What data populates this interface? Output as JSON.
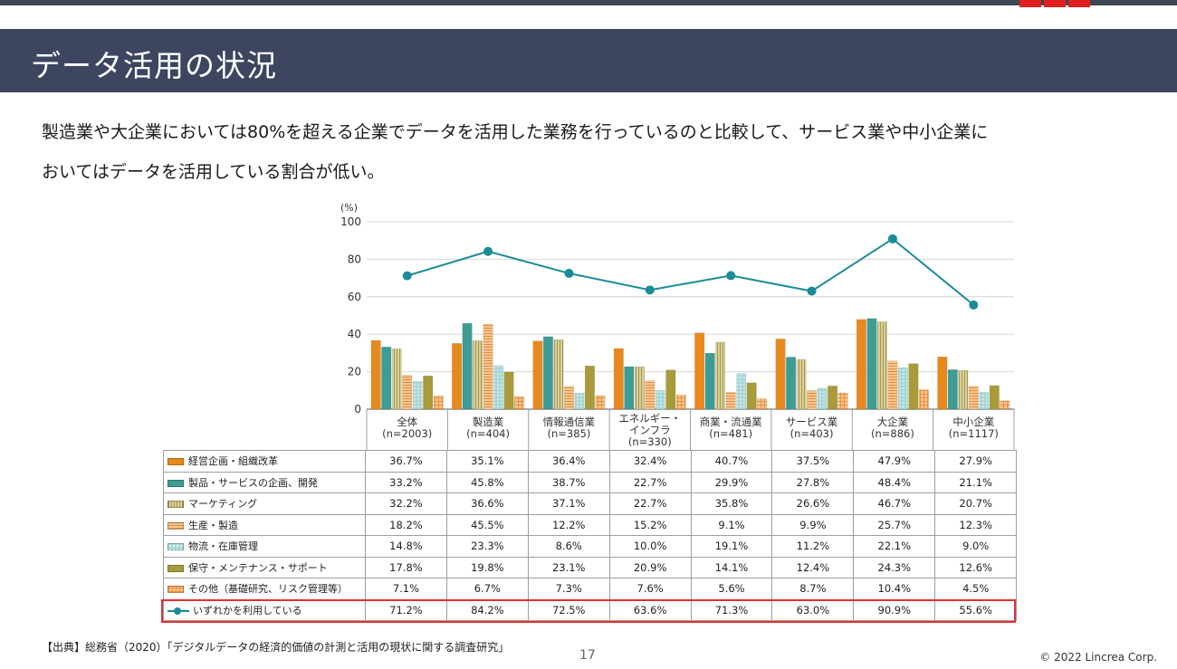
{
  "slide": {
    "title": "データ活用の状況",
    "lead_line1": "製造業や大企業においては80%を超える企業でデータを活用した業務を行っているのと比較して、サービス業や中小企業に",
    "lead_line2": "おいてはデータを活用している割合が低い。",
    "source": "【出典】総務省（2020）「デジタルデータの経済的価値の計測と活用の現状に関する調査研究」",
    "page_number": "17",
    "copyright": "© 2022 Lincrea Corp."
  },
  "chart_data": {
    "type": "bar",
    "ylabel": "(%)",
    "ylim": [
      0,
      100
    ],
    "yticks": [
      0,
      20,
      40,
      60,
      80,
      100
    ],
    "grid": true,
    "categories": [
      {
        "name": "全体",
        "n": "(n=2003)"
      },
      {
        "name": "製造業",
        "n": "(n=404)"
      },
      {
        "name": "情報通信業",
        "n": "(n=385)"
      },
      {
        "name": "エネルギー・",
        "name2": "インフラ",
        "n": "(n=330)"
      },
      {
        "name": "商業・流通業",
        "n": "(n=481)"
      },
      {
        "name": "サービス業",
        "n": "(n=403)"
      },
      {
        "name": "大企業",
        "n": "(n=886)"
      },
      {
        "name": "中小企業",
        "n": "(n=1117)"
      }
    ],
    "series": [
      {
        "name": "経営企画・組織改革",
        "color": "#e8891f",
        "pattern": "solid",
        "values": [
          36.7,
          35.1,
          36.4,
          32.4,
          40.7,
          37.5,
          47.9,
          27.9
        ]
      },
      {
        "name": "製品・サービスの企画、開発",
        "color": "#3d9c93",
        "pattern": "solid",
        "values": [
          33.2,
          45.8,
          38.7,
          22.7,
          29.9,
          27.8,
          48.4,
          21.1
        ]
      },
      {
        "name": "マーケティング",
        "color": "#c9bf7e",
        "pattern": "vlines",
        "values": [
          32.2,
          36.6,
          37.1,
          22.7,
          35.8,
          26.6,
          46.7,
          20.7
        ]
      },
      {
        "name": "生産・製造",
        "color": "#f2a86a",
        "pattern": "hlines",
        "values": [
          18.2,
          45.5,
          12.2,
          15.2,
          9.1,
          9.9,
          25.7,
          12.3
        ]
      },
      {
        "name": "物流・在庫管理",
        "color": "#9fd1d0",
        "pattern": "dots",
        "values": [
          14.8,
          23.3,
          8.6,
          10.0,
          19.1,
          11.2,
          22.1,
          9.0
        ]
      },
      {
        "name": "保守・メンテナンス・サポート",
        "color": "#a99a3a",
        "pattern": "solid",
        "values": [
          17.8,
          19.8,
          23.1,
          20.9,
          14.1,
          12.4,
          24.3,
          12.6
        ]
      },
      {
        "name": "その他（基礎研究、リスク管理等）",
        "color": "#f4b46e",
        "pattern": "grid",
        "values": [
          7.1,
          6.7,
          7.3,
          7.6,
          5.6,
          8.7,
          10.4,
          4.5
        ]
      }
    ],
    "line_series": {
      "name": "いずれかを利用している",
      "color": "#1a8c98",
      "values": [
        71.2,
        84.2,
        72.5,
        63.6,
        71.3,
        63.0,
        90.9,
        55.6
      ]
    }
  },
  "table": {
    "rows": [
      {
        "label": "経営企画・組織改革",
        "cells": [
          "36.7%",
          "35.1%",
          "36.4%",
          "32.4%",
          "40.7%",
          "37.5%",
          "47.9%",
          "27.9%"
        ]
      },
      {
        "label": "製品・サービスの企画、開発",
        "cells": [
          "33.2%",
          "45.8%",
          "38.7%",
          "22.7%",
          "29.9%",
          "27.8%",
          "48.4%",
          "21.1%"
        ]
      },
      {
        "label": "マーケティング",
        "cells": [
          "32.2%",
          "36.6%",
          "37.1%",
          "22.7%",
          "35.8%",
          "26.6%",
          "46.7%",
          "20.7%"
        ]
      },
      {
        "label": "生産・製造",
        "cells": [
          "18.2%",
          "45.5%",
          "12.2%",
          "15.2%",
          "9.1%",
          "9.9%",
          "25.7%",
          "12.3%"
        ]
      },
      {
        "label": "物流・在庫管理",
        "cells": [
          "14.8%",
          "23.3%",
          "8.6%",
          "10.0%",
          "19.1%",
          "11.2%",
          "22.1%",
          "9.0%"
        ]
      },
      {
        "label": "保守・メンテナンス・サポート",
        "cells": [
          "17.8%",
          "19.8%",
          "23.1%",
          "20.9%",
          "14.1%",
          "12.4%",
          "24.3%",
          "12.6%"
        ]
      },
      {
        "label": "その他（基礎研究、リスク管理等）",
        "cells": [
          "7.1%",
          "6.7%",
          "7.3%",
          "7.6%",
          "5.6%",
          "8.7%",
          "10.4%",
          "4.5%"
        ]
      },
      {
        "label": "いずれかを利用している",
        "cells": [
          "71.2%",
          "84.2%",
          "72.5%",
          "63.6%",
          "71.3%",
          "63.0%",
          "90.9%",
          "55.6%"
        ]
      }
    ]
  }
}
